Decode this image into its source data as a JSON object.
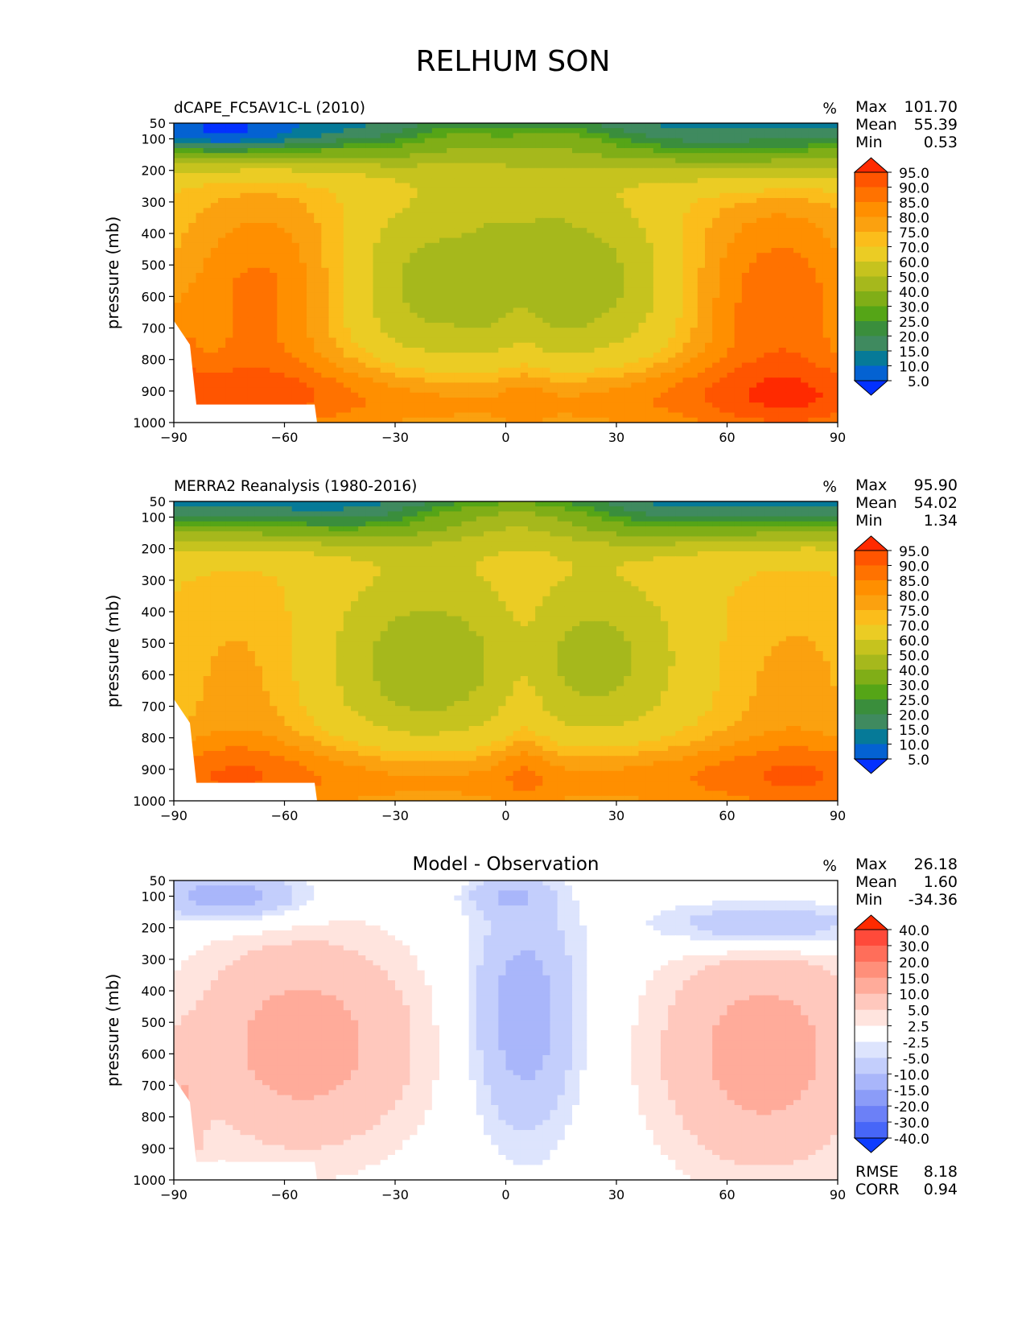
{
  "title": "RELHUM SON",
  "shared": {
    "ylabel": "pressure (mb)",
    "units": "%",
    "x_ticks": [
      -90,
      -60,
      -30,
      0,
      30,
      60,
      90
    ],
    "x_tick_labels": [
      "−90",
      "−60",
      "−30",
      "0",
      "30",
      "60",
      "90"
    ],
    "y_ticks": [
      50,
      100,
      200,
      300,
      400,
      500,
      600,
      700,
      800,
      900,
      1000
    ],
    "ylim": [
      50,
      1000
    ],
    "xlim": [
      -90,
      90
    ]
  },
  "chart_data": [
    {
      "type": "heatmap",
      "title": "dCAPE_FC5AV1C-L (2010)",
      "title_align": "left",
      "units": "%",
      "stats": [
        {
          "label": "Max",
          "value": "101.70"
        },
        {
          "label": "Mean",
          "value": "55.39"
        },
        {
          "label": "Min",
          "value": "0.53"
        }
      ],
      "colorbar": {
        "levels": [
          "95.0",
          "90.0",
          "85.0",
          "80.0",
          "75.0",
          "70.0",
          "60.0",
          "50.0",
          "40.0",
          "30.0",
          "25.0",
          "20.0",
          "15.0",
          "10.0",
          "5.0"
        ],
        "colors": [
          "#ff2a00",
          "#ff5500",
          "#ff7200",
          "#ff8f00",
          "#fba10f",
          "#fbbd1b",
          "#ebcc24",
          "#c6c31e",
          "#a6b81c",
          "#80ae17",
          "#55a517",
          "#3a8e3c",
          "#3f8a5f",
          "#067a98",
          "#0462d2",
          "#0331ff"
        ]
      },
      "field": "model"
    },
    {
      "type": "heatmap",
      "title": "MERRA2 Reanalysis (1980-2016)",
      "title_align": "left",
      "units": "%",
      "stats": [
        {
          "label": "Max",
          "value": "95.90"
        },
        {
          "label": "Mean",
          "value": "54.02"
        },
        {
          "label": "Min",
          "value": "1.34"
        }
      ],
      "colorbar": {
        "levels": [
          "95.0",
          "90.0",
          "85.0",
          "80.0",
          "75.0",
          "70.0",
          "60.0",
          "50.0",
          "40.0",
          "30.0",
          "25.0",
          "20.0",
          "15.0",
          "10.0",
          "5.0"
        ],
        "colors": [
          "#ff2a00",
          "#ff5500",
          "#ff7200",
          "#ff8f00",
          "#fba10f",
          "#fbbd1b",
          "#ebcc24",
          "#c6c31e",
          "#a6b81c",
          "#80ae17",
          "#55a517",
          "#3a8e3c",
          "#3f8a5f",
          "#067a98",
          "#0462d2",
          "#0331ff"
        ]
      },
      "field": "obs"
    },
    {
      "type": "heatmap",
      "title": "Model - Observation",
      "title_align": "center",
      "units": "%",
      "stats": [
        {
          "label": "Max",
          "value": "26.18"
        },
        {
          "label": "Mean",
          "value": "1.60"
        },
        {
          "label": "Min",
          "value": "-34.36"
        }
      ],
      "extra_stats": [
        {
          "label": "RMSE",
          "value": "8.18"
        },
        {
          "label": "CORR",
          "value": "0.94"
        }
      ],
      "colorbar": {
        "levels": [
          "40.0",
          "30.0",
          "20.0",
          "15.0",
          "10.0",
          "5.0",
          "2.5",
          "-2.5",
          "-5.0",
          "-10.0",
          "-15.0",
          "-20.0",
          "-30.0",
          "-40.0"
        ],
        "colors": [
          "#ff2a00",
          "#ff4a3a",
          "#ff6e5a",
          "#ff8f7a",
          "#ffab9a",
          "#ffc8bd",
          "#ffe4de",
          "#ffffff",
          "#dde4fd",
          "#c3cefc",
          "#a9b6fa",
          "#8b9cf8",
          "#6c80f7",
          "#4766f8",
          "#0d3dff"
        ]
      },
      "field": "diff"
    }
  ]
}
